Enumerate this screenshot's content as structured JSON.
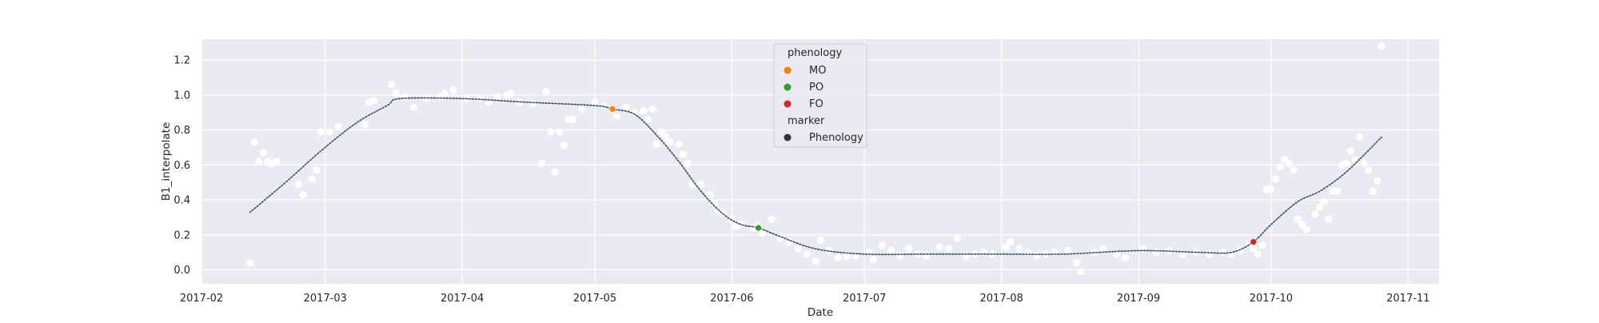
{
  "chart_data": {
    "type": "scatter",
    "title": "",
    "xlabel": "Date",
    "ylabel": "B1_interpolate",
    "x_domain": [
      "2017-02-01",
      "2017-11-08"
    ],
    "ylim": [
      -0.08,
      1.32
    ],
    "x_ticks": [
      "2017-02",
      "2017-03",
      "2017-04",
      "2017-05",
      "2017-06",
      "2017-07",
      "2017-08",
      "2017-09",
      "2017-10",
      "2017-11"
    ],
    "y_ticks": [
      "0.0",
      "0.2",
      "0.4",
      "0.6",
      "0.8",
      "1.0",
      "1.2"
    ],
    "grid": true,
    "background_color": "#eaeaf2",
    "raw_points_color": "#ffffff",
    "curve_color": "#5a6e84",
    "raw_points": [
      {
        "x": "2017-02-12",
        "y": 0.04
      },
      {
        "x": "2017-02-13",
        "y": 0.73
      },
      {
        "x": "2017-02-14",
        "y": 0.62
      },
      {
        "x": "2017-02-15",
        "y": 0.67
      },
      {
        "x": "2017-02-16",
        "y": 0.62
      },
      {
        "x": "2017-02-17",
        "y": 0.61
      },
      {
        "x": "2017-02-18",
        "y": 0.62
      },
      {
        "x": "2017-02-23",
        "y": 0.49
      },
      {
        "x": "2017-02-24",
        "y": 0.43
      },
      {
        "x": "2017-02-26",
        "y": 0.52
      },
      {
        "x": "2017-02-27",
        "y": 0.57
      },
      {
        "x": "2017-02-28",
        "y": 0.79
      },
      {
        "x": "2017-03-02",
        "y": 0.79
      },
      {
        "x": "2017-03-04",
        "y": 0.82
      },
      {
        "x": "2017-03-10",
        "y": 0.83
      },
      {
        "x": "2017-03-11",
        "y": 0.96
      },
      {
        "x": "2017-03-12",
        "y": 0.97
      },
      {
        "x": "2017-03-16",
        "y": 1.06
      },
      {
        "x": "2017-03-17",
        "y": 1.01
      },
      {
        "x": "2017-03-19",
        "y": 0.99
      },
      {
        "x": "2017-03-21",
        "y": 0.93
      },
      {
        "x": "2017-03-24",
        "y": 0.98
      },
      {
        "x": "2017-03-27",
        "y": 0.99
      },
      {
        "x": "2017-03-28",
        "y": 1.01
      },
      {
        "x": "2017-03-30",
        "y": 1.03
      },
      {
        "x": "2017-04-02",
        "y": 0.98
      },
      {
        "x": "2017-04-05",
        "y": 0.98
      },
      {
        "x": "2017-04-07",
        "y": 0.96
      },
      {
        "x": "2017-04-09",
        "y": 0.99
      },
      {
        "x": "2017-04-11",
        "y": 1.0
      },
      {
        "x": "2017-04-12",
        "y": 1.01
      },
      {
        "x": "2017-04-14",
        "y": 0.96
      },
      {
        "x": "2017-04-17",
        "y": 0.95
      },
      {
        "x": "2017-04-19",
        "y": 0.61
      },
      {
        "x": "2017-04-20",
        "y": 1.02
      },
      {
        "x": "2017-04-21",
        "y": 0.79
      },
      {
        "x": "2017-04-22",
        "y": 0.56
      },
      {
        "x": "2017-04-23",
        "y": 0.79
      },
      {
        "x": "2017-04-24",
        "y": 0.71
      },
      {
        "x": "2017-04-25",
        "y": 0.86
      },
      {
        "x": "2017-04-26",
        "y": 0.86
      },
      {
        "x": "2017-04-28",
        "y": 0.92
      },
      {
        "x": "2017-05-01",
        "y": 0.96
      },
      {
        "x": "2017-05-03",
        "y": 0.94
      },
      {
        "x": "2017-05-05",
        "y": 0.92
      },
      {
        "x": "2017-05-06",
        "y": 0.88
      },
      {
        "x": "2017-05-08",
        "y": 0.93
      },
      {
        "x": "2017-05-10",
        "y": 0.9
      },
      {
        "x": "2017-05-12",
        "y": 0.91
      },
      {
        "x": "2017-05-13",
        "y": 0.86
      },
      {
        "x": "2017-05-14",
        "y": 0.92
      },
      {
        "x": "2017-05-15",
        "y": 0.72
      },
      {
        "x": "2017-05-16",
        "y": 0.79
      },
      {
        "x": "2017-05-17",
        "y": 0.76
      },
      {
        "x": "2017-05-18",
        "y": 0.73
      },
      {
        "x": "2017-05-20",
        "y": 0.72
      },
      {
        "x": "2017-05-21",
        "y": 0.66
      },
      {
        "x": "2017-05-22",
        "y": 0.61
      },
      {
        "x": "2017-05-23",
        "y": 0.49
      },
      {
        "x": "2017-05-25",
        "y": 0.49
      },
      {
        "x": "2017-05-27",
        "y": 0.43
      },
      {
        "x": "2017-05-28",
        "y": 0.38
      },
      {
        "x": "2017-05-29",
        "y": 0.34
      },
      {
        "x": "2017-05-30",
        "y": 0.32
      },
      {
        "x": "2017-06-01",
        "y": 0.29
      },
      {
        "x": "2017-06-02",
        "y": 0.25
      },
      {
        "x": "2017-06-03",
        "y": 0.26
      },
      {
        "x": "2017-06-06",
        "y": 0.24
      },
      {
        "x": "2017-06-07",
        "y": 0.25
      },
      {
        "x": "2017-06-08",
        "y": 0.21
      },
      {
        "x": "2017-06-10",
        "y": 0.29
      },
      {
        "x": "2017-06-12",
        "y": 0.18
      },
      {
        "x": "2017-06-14",
        "y": 0.16
      },
      {
        "x": "2017-06-16",
        "y": 0.12
      },
      {
        "x": "2017-06-18",
        "y": 0.09
      },
      {
        "x": "2017-06-20",
        "y": 0.05
      },
      {
        "x": "2017-06-21",
        "y": 0.17
      },
      {
        "x": "2017-06-23",
        "y": 0.11
      },
      {
        "x": "2017-06-25",
        "y": 0.07
      },
      {
        "x": "2017-06-27",
        "y": 0.08
      },
      {
        "x": "2017-06-29",
        "y": 0.08
      },
      {
        "x": "2017-07-02",
        "y": 0.1
      },
      {
        "x": "2017-07-03",
        "y": 0.06
      },
      {
        "x": "2017-07-05",
        "y": 0.14
      },
      {
        "x": "2017-07-07",
        "y": 0.11
      },
      {
        "x": "2017-07-09",
        "y": 0.08
      },
      {
        "x": "2017-07-11",
        "y": 0.12
      },
      {
        "x": "2017-07-13",
        "y": 0.09
      },
      {
        "x": "2017-07-15",
        "y": 0.08
      },
      {
        "x": "2017-07-18",
        "y": 0.13
      },
      {
        "x": "2017-07-20",
        "y": 0.12
      },
      {
        "x": "2017-07-22",
        "y": 0.18
      },
      {
        "x": "2017-07-24",
        "y": 0.08
      },
      {
        "x": "2017-07-26",
        "y": 0.09
      },
      {
        "x": "2017-07-28",
        "y": 0.1
      },
      {
        "x": "2017-07-30",
        "y": 0.09
      },
      {
        "x": "2017-08-02",
        "y": 0.13
      },
      {
        "x": "2017-08-03",
        "y": 0.16
      },
      {
        "x": "2017-08-05",
        "y": 0.12
      },
      {
        "x": "2017-08-07",
        "y": 0.1
      },
      {
        "x": "2017-08-09",
        "y": 0.08
      },
      {
        "x": "2017-08-11",
        "y": 0.09
      },
      {
        "x": "2017-08-13",
        "y": 0.1
      },
      {
        "x": "2017-08-16",
        "y": 0.11
      },
      {
        "x": "2017-08-18",
        "y": 0.04
      },
      {
        "x": "2017-08-19",
        "y": -0.01
      },
      {
        "x": "2017-08-22",
        "y": 0.1
      },
      {
        "x": "2017-08-24",
        "y": 0.12
      },
      {
        "x": "2017-08-27",
        "y": 0.09
      },
      {
        "x": "2017-08-29",
        "y": 0.07
      },
      {
        "x": "2017-09-02",
        "y": 0.12
      },
      {
        "x": "2017-09-05",
        "y": 0.1
      },
      {
        "x": "2017-09-08",
        "y": 0.11
      },
      {
        "x": "2017-09-11",
        "y": 0.09
      },
      {
        "x": "2017-09-14",
        "y": 0.1
      },
      {
        "x": "2017-09-17",
        "y": 0.09
      },
      {
        "x": "2017-09-20",
        "y": 0.1
      },
      {
        "x": "2017-09-22",
        "y": 0.09
      },
      {
        "x": "2017-09-24",
        "y": 0.11
      },
      {
        "x": "2017-09-26",
        "y": 0.15
      },
      {
        "x": "2017-09-27",
        "y": 0.12
      },
      {
        "x": "2017-09-28",
        "y": 0.09
      },
      {
        "x": "2017-09-29",
        "y": 0.14
      },
      {
        "x": "2017-09-30",
        "y": 0.46
      },
      {
        "x": "2017-10-01",
        "y": 0.46
      },
      {
        "x": "2017-10-02",
        "y": 0.52
      },
      {
        "x": "2017-10-03",
        "y": 0.59
      },
      {
        "x": "2017-10-04",
        "y": 0.63
      },
      {
        "x": "2017-10-05",
        "y": 0.61
      },
      {
        "x": "2017-10-06",
        "y": 0.57
      },
      {
        "x": "2017-10-07",
        "y": 0.29
      },
      {
        "x": "2017-10-08",
        "y": 0.26
      },
      {
        "x": "2017-10-09",
        "y": 0.23
      },
      {
        "x": "2017-10-11",
        "y": 0.32
      },
      {
        "x": "2017-10-12",
        "y": 0.36
      },
      {
        "x": "2017-10-13",
        "y": 0.39
      },
      {
        "x": "2017-10-14",
        "y": 0.29
      },
      {
        "x": "2017-10-15",
        "y": 0.45
      },
      {
        "x": "2017-10-16",
        "y": 0.45
      },
      {
        "x": "2017-10-17",
        "y": 0.6
      },
      {
        "x": "2017-10-18",
        "y": 0.61
      },
      {
        "x": "2017-10-19",
        "y": 0.68
      },
      {
        "x": "2017-10-20",
        "y": 0.63
      },
      {
        "x": "2017-10-21",
        "y": 0.76
      },
      {
        "x": "2017-10-22",
        "y": 0.61
      },
      {
        "x": "2017-10-23",
        "y": 0.57
      },
      {
        "x": "2017-10-24",
        "y": 0.45
      },
      {
        "x": "2017-10-25",
        "y": 0.51
      },
      {
        "x": "2017-10-26",
        "y": 1.28
      }
    ],
    "curve_knots": [
      {
        "x": "2017-02-12",
        "y": 0.33
      },
      {
        "x": "2017-02-20",
        "y": 0.5
      },
      {
        "x": "2017-02-28",
        "y": 0.68
      },
      {
        "x": "2017-03-08",
        "y": 0.84
      },
      {
        "x": "2017-03-15",
        "y": 0.94
      },
      {
        "x": "2017-03-18",
        "y": 0.98
      },
      {
        "x": "2017-04-01",
        "y": 0.98
      },
      {
        "x": "2017-04-15",
        "y": 0.96
      },
      {
        "x": "2017-05-01",
        "y": 0.94
      },
      {
        "x": "2017-05-05",
        "y": 0.92
      },
      {
        "x": "2017-05-10",
        "y": 0.89
      },
      {
        "x": "2017-05-15",
        "y": 0.77
      },
      {
        "x": "2017-05-20",
        "y": 0.62
      },
      {
        "x": "2017-05-25",
        "y": 0.45
      },
      {
        "x": "2017-05-30",
        "y": 0.32
      },
      {
        "x": "2017-06-03",
        "y": 0.26
      },
      {
        "x": "2017-06-07",
        "y": 0.24
      },
      {
        "x": "2017-06-12",
        "y": 0.19
      },
      {
        "x": "2017-06-20",
        "y": 0.12
      },
      {
        "x": "2017-07-01",
        "y": 0.09
      },
      {
        "x": "2017-07-15",
        "y": 0.09
      },
      {
        "x": "2017-08-01",
        "y": 0.09
      },
      {
        "x": "2017-08-15",
        "y": 0.09
      },
      {
        "x": "2017-09-01",
        "y": 0.11
      },
      {
        "x": "2017-09-15",
        "y": 0.1
      },
      {
        "x": "2017-09-22",
        "y": 0.1
      },
      {
        "x": "2017-09-27",
        "y": 0.16
      },
      {
        "x": "2017-10-01",
        "y": 0.26
      },
      {
        "x": "2017-10-07",
        "y": 0.39
      },
      {
        "x": "2017-10-12",
        "y": 0.45
      },
      {
        "x": "2017-10-18",
        "y": 0.56
      },
      {
        "x": "2017-10-26",
        "y": 0.76
      }
    ],
    "phenology_points": [
      {
        "name": "MO",
        "x": "2017-05-05",
        "y": 0.92,
        "color": "#ff7f0e"
      },
      {
        "name": "PO",
        "x": "2017-06-07",
        "y": 0.24,
        "color": "#2ca02c"
      },
      {
        "name": "FO",
        "x": "2017-09-27",
        "y": 0.16,
        "color": "#d62728"
      }
    ],
    "legend": {
      "placement": "upper-center",
      "phenology_title": "phenology",
      "entries": [
        {
          "label": "MO",
          "color": "#ff7f0e"
        },
        {
          "label": "PO",
          "color": "#2ca02c"
        },
        {
          "label": "FO",
          "color": "#d62728"
        }
      ],
      "marker_title": "marker",
      "marker_entries": [
        {
          "label": "Phenology",
          "color": "#333333"
        }
      ]
    }
  }
}
